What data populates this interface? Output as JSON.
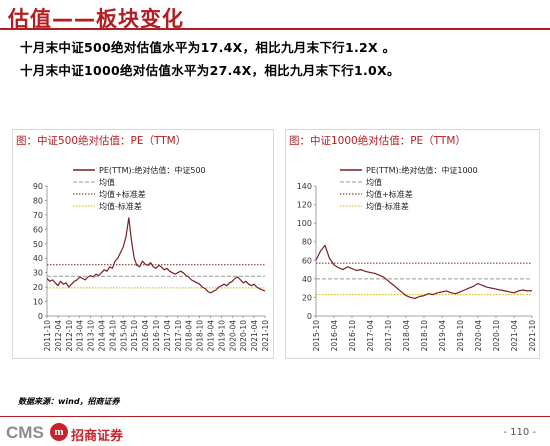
{
  "title": "估值——板块变化",
  "bullets": [
    "十月末中证500绝对估值水平为17.4X，相比九月末下行1.2X 。",
    "十月末中证1000绝对估值水平为27.4X，相比九月末下行1.0X。"
  ],
  "colors": {
    "accent": "#b21d22",
    "series": "#7a1f23",
    "mean": "#999999",
    "plus_std": "#7a1f23",
    "minus_std": "#d4b300"
  },
  "chart_data": [
    {
      "type": "line",
      "title": "图：中证500绝对估值：PE（TTM）",
      "legend": [
        "PE(TTM):绝对估值：中证500",
        "均值",
        "均值+标准差",
        "均值-标准差"
      ],
      "ylim": [
        0,
        90
      ],
      "yticks": [
        "0",
        "10",
        "20",
        "30",
        "40",
        "50",
        "60",
        "70",
        "80",
        "90"
      ],
      "xticks": [
        "2011-10",
        "2012-04",
        "2012-10",
        "2013-04",
        "2013-10",
        "2014-04",
        "2014-10",
        "2015-04",
        "2015-10",
        "2016-04",
        "2016-10",
        "2017-04",
        "2017-10",
        "2018-04",
        "2018-10",
        "2019-04",
        "2019-10",
        "2020-04",
        "2020-10",
        "2021-04",
        "2021-10"
      ],
      "mean": 27.5,
      "mean_plus_std": 35.5,
      "mean_minus_std": 19.5,
      "series": [
        {
          "x": [
            0,
            0.25,
            0.5,
            0.75,
            1,
            1.25,
            1.5,
            1.75,
            2,
            2.25,
            2.5,
            2.75,
            3,
            3.25,
            3.5,
            3.75,
            4,
            4.25,
            4.5,
            4.75,
            5,
            5.25,
            5.5,
            5.75,
            6,
            6.25,
            6.5,
            6.75,
            7,
            7.25,
            7.5,
            7.75,
            8,
            8.25,
            8.5,
            8.75,
            9,
            9.25,
            9.5,
            9.75,
            10,
            10.25,
            10.5,
            10.75,
            11,
            11.25,
            11.5,
            11.75,
            12,
            12.25,
            12.5,
            12.75,
            13,
            13.25,
            13.5,
            13.75,
            14,
            14.25,
            14.5,
            14.75,
            15,
            15.25,
            15.5,
            15.75,
            16,
            16.25,
            16.5,
            16.75,
            17,
            17.25,
            17.5,
            17.75,
            18,
            18.25,
            18.5,
            18.75,
            19,
            19.25,
            19.5,
            19.75,
            20
          ],
          "y": [
            26,
            24,
            25,
            23,
            21,
            24,
            22,
            23,
            20,
            22,
            24,
            25,
            27,
            26,
            25,
            27,
            28,
            27,
            29,
            28,
            30,
            32,
            31,
            34,
            33,
            38,
            40,
            44,
            48,
            55,
            68,
            52,
            40,
            35,
            34,
            38,
            36,
            35,
            37,
            34,
            33,
            35,
            34,
            32,
            33,
            31,
            30,
            29,
            30,
            31,
            30,
            28,
            27,
            25,
            24,
            23,
            22,
            20,
            19,
            17,
            16,
            17,
            18,
            20,
            21,
            22,
            21,
            23,
            24,
            26,
            27,
            25,
            23,
            24,
            22,
            21,
            22,
            20,
            19,
            18,
            17.4
          ]
        }
      ]
    },
    {
      "type": "line",
      "title": "图：中证1000绝对估值：PE（TTM）",
      "legend": [
        "PE(TTM):绝对估值：中证1000",
        "均值",
        "均值+标准差",
        "均值-标准差"
      ],
      "ylim": [
        0,
        140
      ],
      "yticks": [
        "0",
        "20",
        "40",
        "60",
        "80",
        "100",
        "120",
        "140"
      ],
      "xticks": [
        "2015-10",
        "2016-04",
        "2016-10",
        "2017-04",
        "2017-10",
        "2018-04",
        "2018-10",
        "2019-04",
        "2019-10",
        "2020-04",
        "2020-10",
        "2021-04",
        "2021-10"
      ],
      "mean": 40,
      "mean_plus_std": 57,
      "mean_minus_std": 23,
      "series": [
        {
          "x": [
            0,
            0.25,
            0.5,
            0.75,
            1,
            1.25,
            1.5,
            1.75,
            2,
            2.25,
            2.5,
            2.75,
            3,
            3.25,
            3.5,
            3.75,
            4,
            4.25,
            4.5,
            4.75,
            5,
            5.25,
            5.5,
            5.75,
            6,
            6.25,
            6.5,
            6.75,
            7,
            7.25,
            7.5,
            7.75,
            8,
            8.25,
            8.5,
            8.75,
            9,
            9.25,
            9.5,
            9.75,
            10,
            10.25,
            10.5,
            10.75,
            11,
            11.25,
            11.5,
            11.75,
            12
          ],
          "y": [
            60,
            70,
            76,
            62,
            55,
            52,
            50,
            53,
            51,
            49,
            50,
            48,
            47,
            46,
            44,
            42,
            38,
            34,
            30,
            26,
            22,
            20,
            19,
            21,
            22,
            24,
            23,
            25,
            26,
            27,
            25,
            24,
            26,
            28,
            30,
            32,
            35,
            33,
            31,
            30,
            29,
            28,
            27,
            26,
            25,
            27,
            28,
            27,
            27.4
          ]
        }
      ]
    }
  ],
  "source": "数据来源：wind，招商证券",
  "footer": {
    "logo_text": "CMS",
    "logo_mark": "m",
    "company": "招商证券",
    "page": "- 110 -"
  }
}
